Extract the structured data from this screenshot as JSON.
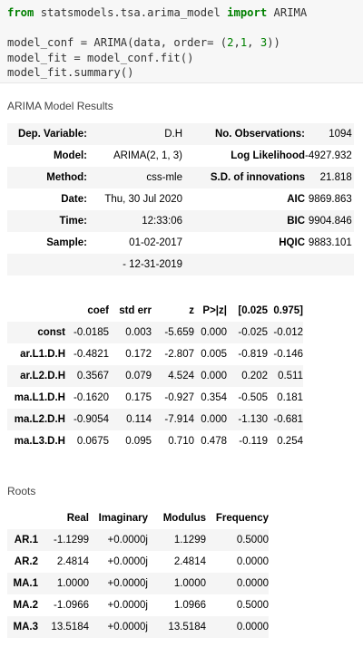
{
  "code": {
    "line1": {
      "kw1": "from",
      "mod": " statsmodels.tsa.arima_model ",
      "kw2": "import",
      "name": " ARIMA"
    },
    "line2": "",
    "line3": {
      "pre": "model_conf = ARIMA(data, order= (",
      "n1": "2",
      "c1": ",",
      "n2": "1",
      "c2": ", ",
      "n3": "3",
      "post": "))"
    },
    "line4": "model_fit = model_conf.fit()",
    "line5": "model_fit.summary()"
  },
  "results_title": "ARIMA Model Results",
  "summary": {
    "rows": [
      {
        "l1": "Dep. Variable:",
        "v1": "D.H",
        "l2": "No. Observations:",
        "v2": "1094"
      },
      {
        "l1": "Model:",
        "v1": "ARIMA(2, 1, 3)",
        "l2": "Log Likelihood",
        "v2": "-4927.932"
      },
      {
        "l1": "Method:",
        "v1": "css-mle",
        "l2": "S.D. of innovations",
        "v2": "21.818"
      },
      {
        "l1": "Date:",
        "v1": "Thu, 30 Jul 2020",
        "l2": "AIC",
        "v2": "9869.863"
      },
      {
        "l1": "Time:",
        "v1": "12:33:06",
        "l2": "BIC",
        "v2": "9904.846"
      },
      {
        "l1": "Sample:",
        "v1": "01-02-2017",
        "l2": "HQIC",
        "v2": "9883.101"
      },
      {
        "l1": "",
        "v1": "- 12-31-2019",
        "l2": "",
        "v2": ""
      }
    ]
  },
  "coef": {
    "headers": [
      "",
      "coef",
      "std err",
      "z",
      "P>|z|",
      "[0.025",
      "0.975]"
    ],
    "rows": [
      [
        "const",
        "-0.0185",
        "0.003",
        "-5.659",
        "0.000",
        "-0.025",
        "-0.012"
      ],
      [
        "ar.L1.D.H",
        "-0.4821",
        "0.172",
        "-2.807",
        "0.005",
        "-0.819",
        "-0.146"
      ],
      [
        "ar.L2.D.H",
        "0.3567",
        "0.079",
        "4.524",
        "0.000",
        "0.202",
        "0.511"
      ],
      [
        "ma.L1.D.H",
        "-0.1620",
        "0.175",
        "-0.927",
        "0.354",
        "-0.505",
        "0.181"
      ],
      [
        "ma.L2.D.H",
        "-0.9054",
        "0.114",
        "-7.914",
        "0.000",
        "-1.130",
        "-0.681"
      ],
      [
        "ma.L3.D.H",
        "0.0675",
        "0.095",
        "0.710",
        "0.478",
        "-0.119",
        "0.254"
      ]
    ]
  },
  "roots_title": "Roots",
  "roots": {
    "headers": [
      "",
      "Real",
      "Imaginary",
      "Modulus",
      "Frequency"
    ],
    "rows": [
      [
        "AR.1",
        "-1.1299",
        "+0.0000j",
        "1.1299",
        "0.5000"
      ],
      [
        "AR.2",
        "2.4814",
        "+0.0000j",
        "2.4814",
        "0.0000"
      ],
      [
        "MA.1",
        "1.0000",
        "+0.0000j",
        "1.0000",
        "0.0000"
      ],
      [
        "MA.2",
        "-1.0966",
        "+0.0000j",
        "1.0966",
        "0.5000"
      ],
      [
        "MA.3",
        "13.5184",
        "+0.0000j",
        "13.5184",
        "0.0000"
      ]
    ]
  }
}
